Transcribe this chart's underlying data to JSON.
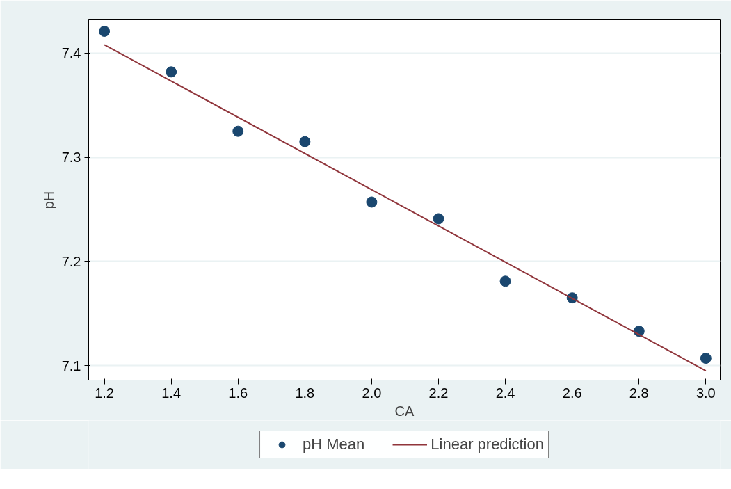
{
  "chart_data": {
    "type": "scatter",
    "xlabel": "CA",
    "ylabel": "pH",
    "x": [
      1.2,
      1.4,
      1.6,
      1.8,
      2.0,
      2.2,
      2.4,
      2.6,
      2.8,
      3.0
    ],
    "series": [
      {
        "name": "pH Mean",
        "color": "#1a476f",
        "marker": "circle",
        "values": [
          7.421,
          7.382,
          7.325,
          7.315,
          7.257,
          7.241,
          7.181,
          7.165,
          7.133,
          7.107
        ]
      },
      {
        "name": "Linear prediction",
        "type": "line",
        "color": "#90353b",
        "line_style": "solid",
        "x": [
          1.2,
          3.0
        ],
        "values": [
          7.408,
          7.095
        ]
      }
    ],
    "xlim": [
      1.153,
      3.043
    ],
    "ylim": [
      7.086,
      7.432
    ],
    "xticks": [
      {
        "value": 1.2,
        "label": "1.2"
      },
      {
        "value": 1.4,
        "label": "1.4"
      },
      {
        "value": 1.6,
        "label": "1.6"
      },
      {
        "value": 1.8,
        "label": "1.8"
      },
      {
        "value": 2.0,
        "label": "2.0"
      },
      {
        "value": 2.2,
        "label": "2.2"
      },
      {
        "value": 2.4,
        "label": "2.4"
      },
      {
        "value": 2.6,
        "label": "2.6"
      },
      {
        "value": 2.8,
        "label": "2.8"
      },
      {
        "value": 3.0,
        "label": "3.0"
      }
    ],
    "yticks": [
      7.1,
      7.2,
      7.3,
      7.4
    ],
    "grid": "y",
    "legend": "bottom"
  }
}
